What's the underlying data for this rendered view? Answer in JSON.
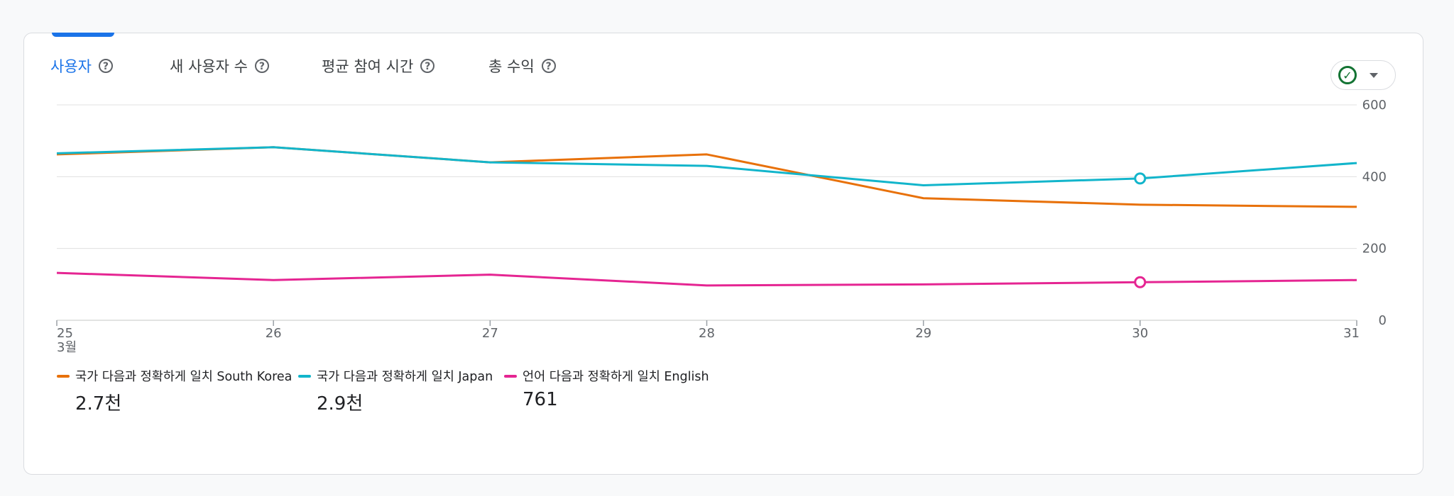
{
  "tabs": [
    {
      "label": "사용자",
      "active": true
    },
    {
      "label": "새 사용자 수",
      "active": false
    },
    {
      "label": "평균 참여 시간",
      "active": false
    },
    {
      "label": "총 수익",
      "active": false
    }
  ],
  "help_icon": "?",
  "compare_button": {
    "check_icon": "✓",
    "icon": "check-circle-icon"
  },
  "chart_data": {
    "type": "line",
    "x": [
      "25",
      "26",
      "27",
      "28",
      "29",
      "30",
      "31"
    ],
    "x_first_sublabel": "3월",
    "yticks": [
      "0",
      "200",
      "400",
      "600"
    ],
    "ylim": [
      0,
      600
    ],
    "series": [
      {
        "name": "국가 다음과 정확하게 일치 South Korea",
        "color": "#e8710a",
        "values": [
          462,
          482,
          440,
          462,
          340,
          322,
          316
        ],
        "total": "2.7천"
      },
      {
        "name": "국가 다음과 정확하게 일치 Japan",
        "color": "#12b5cb",
        "values": [
          465,
          482,
          440,
          430,
          376,
          395,
          438
        ],
        "total": "2.9천"
      },
      {
        "name": "언어 다음과 정확하게 일치 English",
        "color": "#e52592",
        "values": [
          132,
          112,
          127,
          97,
          100,
          106,
          112
        ],
        "total": "761"
      }
    ],
    "highlight_index": 5,
    "grid": true,
    "legend": "bottom-left"
  }
}
